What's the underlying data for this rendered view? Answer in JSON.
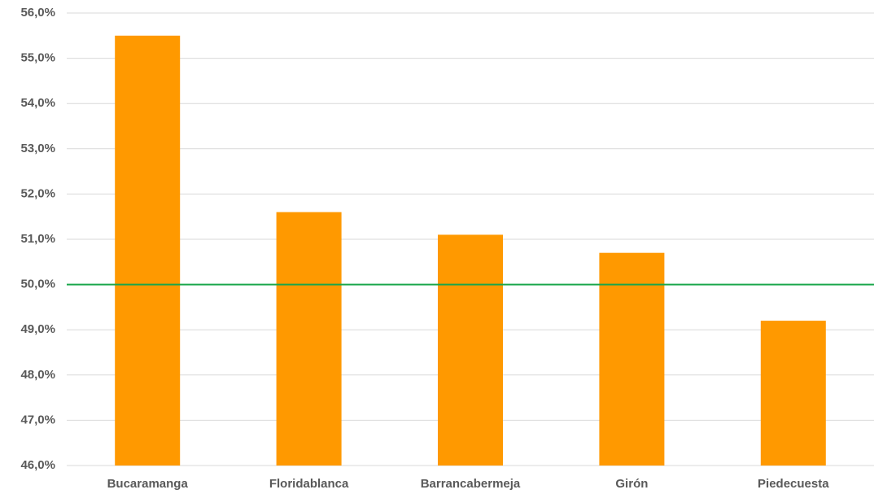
{
  "chart_data": {
    "type": "bar",
    "categories": [
      "Bucaramanga",
      "Floridablanca",
      "Barrancabermeja",
      "Girón",
      "Piedecuesta"
    ],
    "values": [
      55.5,
      51.6,
      51.1,
      50.7,
      49.2
    ],
    "color": "#ff9900",
    "ylim": [
      46,
      56
    ],
    "yticks": [
      {
        "value": 46,
        "label": "46,0%"
      },
      {
        "value": 47,
        "label": "47,0%"
      },
      {
        "value": 48,
        "label": "48,0%"
      },
      {
        "value": 49,
        "label": "49,0%"
      },
      {
        "value": 50,
        "label": "50,0%"
      },
      {
        "value": 51,
        "label": "51,0%"
      },
      {
        "value": 52,
        "label": "52,0%"
      },
      {
        "value": 53,
        "label": "53,0%"
      },
      {
        "value": 54,
        "label": "54,0%"
      },
      {
        "value": 55,
        "label": "55,0%"
      },
      {
        "value": 56,
        "label": "56,0%"
      }
    ],
    "grid": true,
    "reference_line": {
      "value": 50,
      "color": "#1aa64b"
    }
  }
}
